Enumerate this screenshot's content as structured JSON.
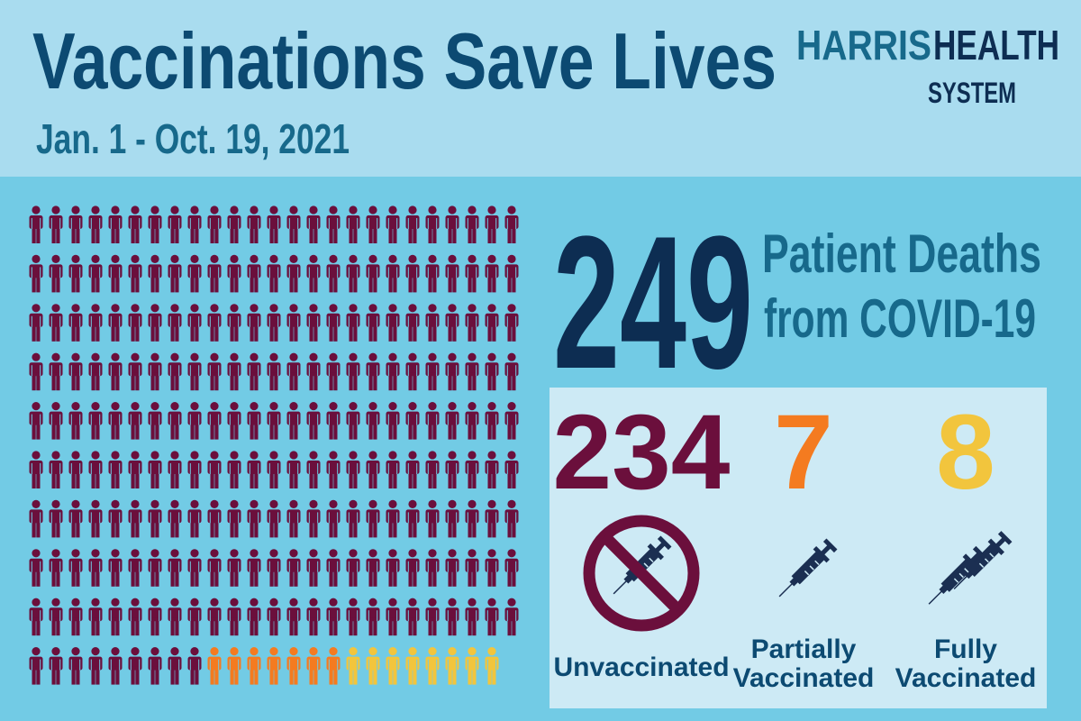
{
  "header": {
    "title": "Vaccinations Save Lives",
    "subtitle": "Jan. 1 - Oct. 19, 2021",
    "logo": {
      "word1": "HARRIS",
      "word2": "HEALTH",
      "word3": "SYSTEM"
    }
  },
  "total": {
    "value": 249,
    "label_line1": "Patient Deaths",
    "label_line2": "from COVID-19"
  },
  "groups": [
    {
      "count": 234,
      "label": [
        "Unvaccinated"
      ],
      "color": "#6b0f3c",
      "doses": 0
    },
    {
      "count": 7,
      "label": [
        "Partially",
        "Vaccinated"
      ],
      "color": "#f47b20",
      "doses": 1
    },
    {
      "count": 8,
      "label": [
        "Fully",
        "Vaccinated"
      ],
      "color": "#f2c53d",
      "doses": 2
    }
  ],
  "pictograph_columns": 25
}
